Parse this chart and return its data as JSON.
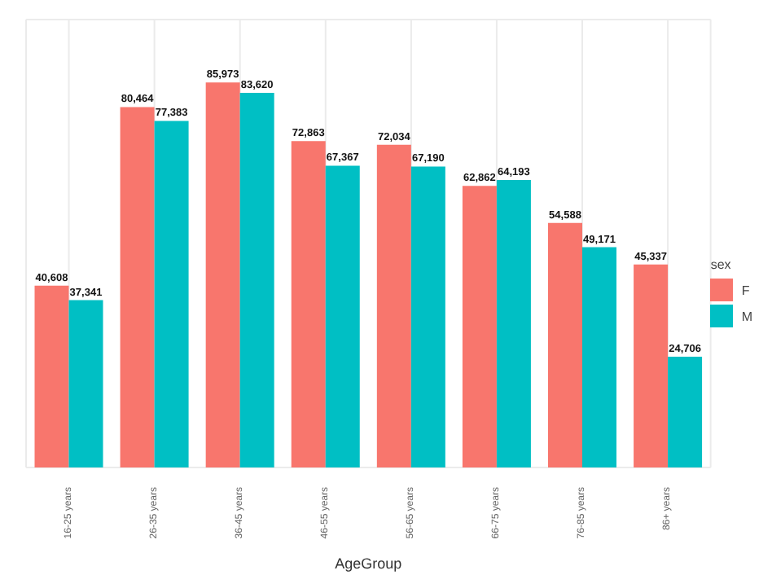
{
  "chart_data": {
    "type": "bar",
    "xlabel": "AgeGroup",
    "legend_title": "sex",
    "categories": [
      "16-25 years",
      "26-35 years",
      "36-45 years",
      "46-55 years",
      "56-65 years",
      "66-75 years",
      "76-85 years",
      "86+ years"
    ],
    "series": [
      {
        "name": "F",
        "color": "#f8766d",
        "values": [
          40608,
          80464,
          85973,
          72863,
          72034,
          62862,
          54588,
          45337
        ],
        "value_labels": [
          "40,608",
          "80,464",
          "85,973",
          "72,863",
          "72,034",
          "62,862",
          "54,588",
          "45,337"
        ]
      },
      {
        "name": "M",
        "color": "#00bfc4",
        "values": [
          37341,
          77383,
          83620,
          67367,
          67190,
          64193,
          49171,
          24706
        ],
        "value_labels": [
          "37,341",
          "77,383",
          "83,620",
          "67,367",
          "67,190",
          "64,193",
          "49,171",
          "24,706"
        ]
      }
    ],
    "tick_labels": "x",
    "grid": true,
    "legend": "right"
  }
}
